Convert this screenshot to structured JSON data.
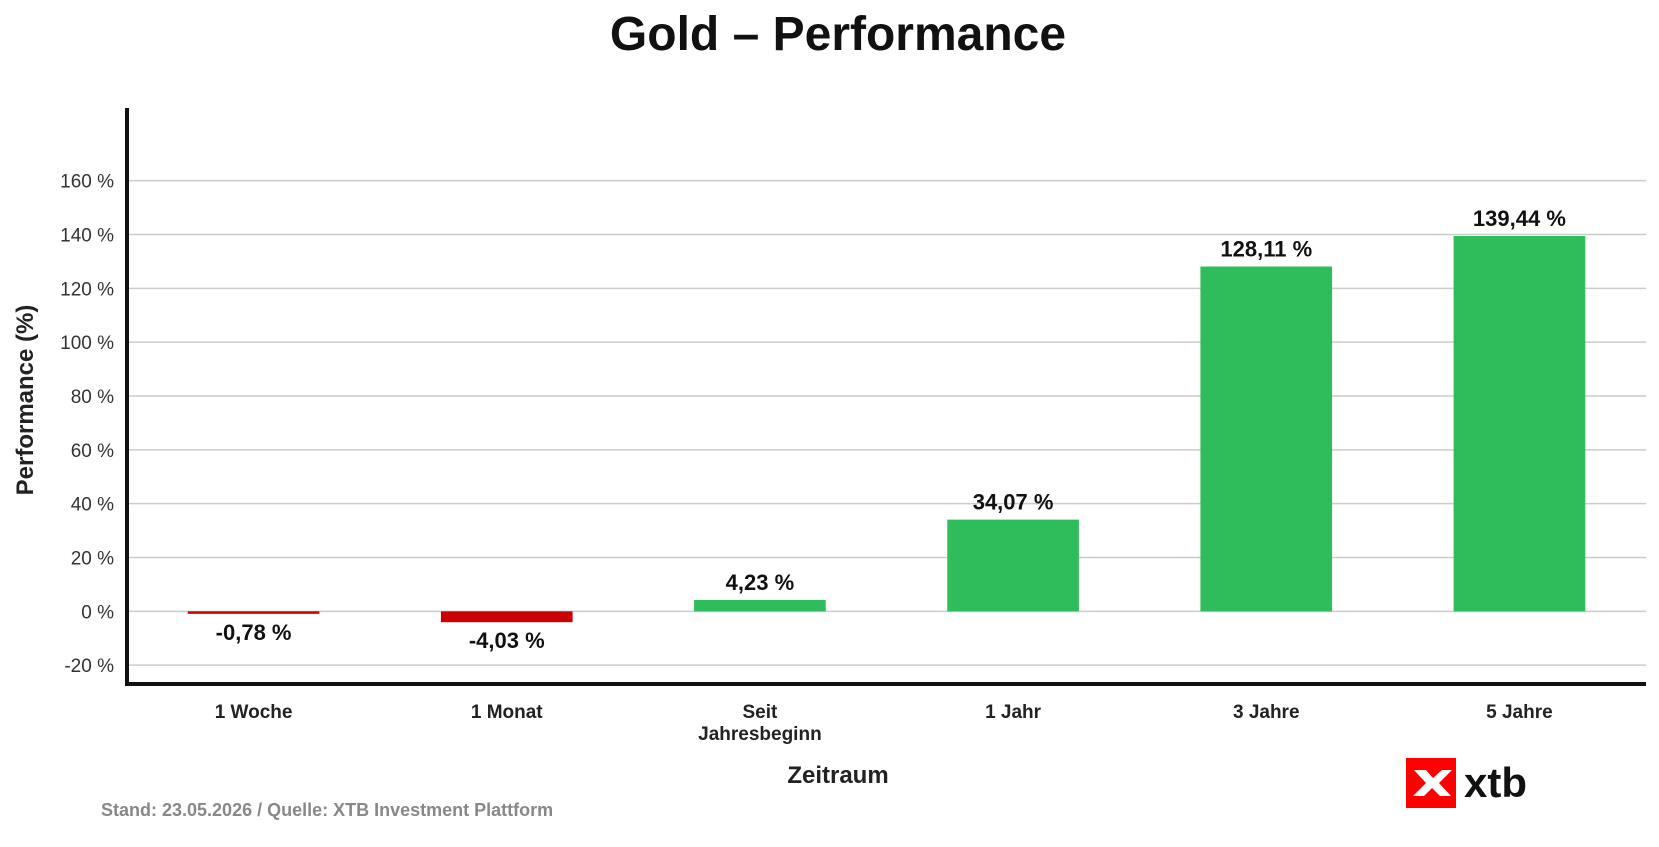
{
  "chart_data": {
    "type": "bar",
    "title": "Gold – Performance",
    "xlabel": "Zeitraum",
    "ylabel": "Performance (%)",
    "categories": [
      [
        "1 Woche"
      ],
      [
        "1 Monat"
      ],
      [
        "Seit",
        "Jahresbeginn"
      ],
      [
        "1 Jahr"
      ],
      [
        "3 Jahre"
      ],
      [
        "5 Jahre"
      ]
    ],
    "values": [
      -0.78,
      -4.03,
      4.23,
      34.07,
      128.11,
      139.44
    ],
    "value_labels": [
      "-0,78 %",
      "-4,03 %",
      "4,23 %",
      "34,07 %",
      "128,11 %",
      "139,44 %"
    ],
    "ylim": [
      -27,
      187
    ],
    "yticks": [
      -20,
      0,
      20,
      40,
      60,
      80,
      100,
      120,
      140,
      160
    ],
    "ytick_labels": [
      "-20 %",
      "0 %",
      "20 %",
      "40 %",
      "60 %",
      "80 %",
      "100 %",
      "120 %",
      "140 %",
      "160 %"
    ],
    "grid": true,
    "colors": {
      "positive": "#2ebd5a",
      "negative": "#cc0000",
      "grid": "#cccccc",
      "axis": "#111111"
    }
  },
  "footer": {
    "source": "Stand: 23.05.2026 / Quelle: XTB Investment Plattform"
  },
  "logo": {
    "text": "xtb",
    "color": "#ff0000"
  }
}
